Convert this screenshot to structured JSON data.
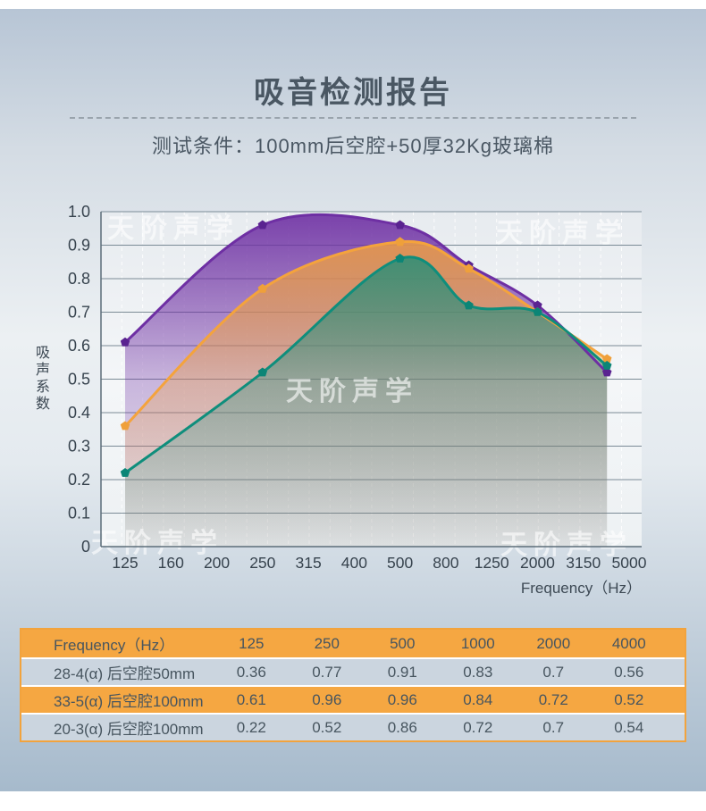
{
  "header": {
    "title": "吸音检测报告",
    "subtitle": "测试条件：100mm后空腔+50厚32Kg玻璃棉"
  },
  "watermark": {
    "text": "天阶声学"
  },
  "colors": {
    "accent_orange": "#f5a742",
    "row_light_blue": "#cbd5df",
    "series_purple": "#6e2fa3",
    "series_orange": "#f4a33c",
    "series_teal": "#0f8e7c",
    "text_dark": "#4a5763"
  },
  "chart_data": {
    "type": "line",
    "title": "",
    "xlabel": "Frequency（Hz）",
    "ylabel": "吸声系数",
    "ylim": [
      0,
      1.0
    ],
    "ytick_labels": [
      "0",
      "0.1",
      "0.2",
      "0.3",
      "0.4",
      "0.5",
      "0.6",
      "0.7",
      "0.8",
      "0.9",
      "1.0"
    ],
    "x_axis_ticks": [
      125,
      160,
      200,
      250,
      315,
      400,
      500,
      800,
      1250,
      2000,
      3150,
      5000
    ],
    "x": [
      125,
      250,
      500,
      1000,
      2000,
      4000
    ],
    "series": [
      {
        "name": "33-5(α) 后空腔100mm",
        "color": "#6e2fa3",
        "marker_color": "#5a2390",
        "values": [
          0.61,
          0.96,
          0.96,
          0.84,
          0.72,
          0.52
        ]
      },
      {
        "name": "28-4(α) 后空腔50mm",
        "color": "#f4a33c",
        "marker_color": "#efa03a",
        "values": [
          0.36,
          0.77,
          0.91,
          0.83,
          0.7,
          0.56
        ]
      },
      {
        "name": "20-3(α) 后空腔100mm",
        "color": "#0f8e7c",
        "marker_color": "#0b8576",
        "values": [
          0.22,
          0.52,
          0.86,
          0.72,
          0.7,
          0.54
        ]
      }
    ],
    "grid": true,
    "legend_position": "none"
  },
  "table": {
    "header": [
      "Frequency（Hz）",
      "125",
      "250",
      "500",
      "1000",
      "2000",
      "4000"
    ],
    "rows": [
      {
        "label": "28-4(α) 后空腔50mm",
        "values": [
          "0.36",
          "0.77",
          "0.91",
          "0.83",
          "0.7",
          "0.56"
        ]
      },
      {
        "label": "33-5(α) 后空腔100mm",
        "values": [
          "0.61",
          "0.96",
          "0.96",
          "0.84",
          "0.72",
          "0.52"
        ]
      },
      {
        "label": "20-3(α) 后空腔100mm",
        "values": [
          "0.22",
          "0.52",
          "0.86",
          "0.72",
          "0.7",
          "0.54"
        ]
      }
    ]
  }
}
